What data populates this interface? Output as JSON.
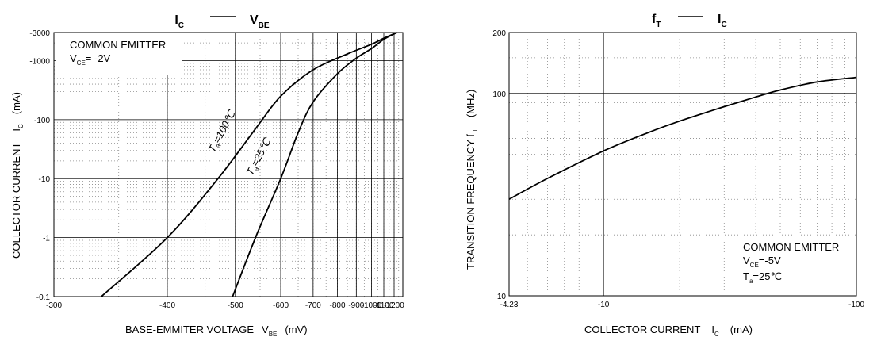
{
  "chart_data": [
    {
      "type": "line",
      "title": "IC — VBE",
      "title_parts": {
        "left_main": "I",
        "left_sub": "C",
        "right_main": "V",
        "right_sub": "BE"
      },
      "xlabel": "BASE-EMMITER VOLTAGE",
      "xlabel_symbol": "V",
      "xlabel_sub": "BE",
      "xlabel_unit": "(mV)",
      "ylabel": "COLLECTOR CURRENT",
      "ylabel_symbol": "I",
      "ylabel_sub": "C",
      "ylabel_unit": "(mA)",
      "x_scale": "reciprocal",
      "y_scale": "log",
      "xlim": [
        -300,
        -1300
      ],
      "ylim": [
        -0.1,
        -3000
      ],
      "x_ticks": [
        {
          "value": -300,
          "label": "-300"
        },
        {
          "value": -400,
          "label": "-400"
        },
        {
          "value": -500,
          "label": "-500"
        },
        {
          "value": -600,
          "label": "-600"
        },
        {
          "value": -700,
          "label": "-700"
        },
        {
          "value": -800,
          "label": "-800"
        },
        {
          "value": -900,
          "label": "-900"
        },
        {
          "value": -1000,
          "label": "-1000"
        },
        {
          "value": -1100,
          "label": "-1100"
        },
        {
          "value": -1200,
          "label": "-1200"
        }
      ],
      "y_ticks": [
        {
          "value": -0.1,
          "label": "-0.1"
        },
        {
          "value": -1,
          "label": "-1"
        },
        {
          "value": -10,
          "label": "-10"
        },
        {
          "value": -100,
          "label": "-100"
        },
        {
          "value": -1000,
          "label": "-1000"
        },
        {
          "value": -3000,
          "label": "-3000"
        }
      ],
      "grid": true,
      "annotation": {
        "line1": "COMMON EMITTER",
        "line2_main": "V",
        "line2_sub": "CE",
        "line2_rest": "= -2V",
        "position": "top-left"
      },
      "series": [
        {
          "name": "Ta=100℃",
          "label_main": "T",
          "label_sub": "a",
          "label_rest": "=100℃",
          "points": [
            [
              -335,
              -0.1
            ],
            [
              -400,
              -1
            ],
            [
              -470,
              -10
            ],
            [
              -540,
              -70
            ],
            [
              -600,
              -250
            ],
            [
              -700,
              -700
            ],
            [
              -850,
              -1300
            ],
            [
              -1000,
              -1900
            ],
            [
              -1100,
              -2400
            ],
            [
              -1230,
              -3000
            ]
          ]
        },
        {
          "name": "Ta=25℃",
          "label_main": "T",
          "label_sub": "a",
          "label_rest": "=25℃",
          "points": [
            [
              -495,
              -0.1
            ],
            [
              -540,
              -1
            ],
            [
              -600,
              -10
            ],
            [
              -650,
              -60
            ],
            [
              -700,
              -200
            ],
            [
              -800,
              -600
            ],
            [
              -900,
              -1100
            ],
            [
              -1000,
              -1600
            ],
            [
              -1100,
              -2300
            ],
            [
              -1230,
              -3000
            ]
          ]
        }
      ]
    },
    {
      "type": "line",
      "title": "fT — IC",
      "title_parts": {
        "left_main": "f",
        "left_sub": "T",
        "right_main": "I",
        "right_sub": "C"
      },
      "xlabel": "COLLECTOR CURRENT",
      "xlabel_symbol": "I",
      "xlabel_sub": "C",
      "xlabel_unit": "(mA)",
      "ylabel": "TRANSITION FREQUENCY f",
      "ylabel_sub": "T",
      "ylabel_unit": "(MHz)",
      "x_scale": "log",
      "y_scale": "log",
      "xlim": [
        -4.23,
        -100
      ],
      "ylim": [
        10,
        200
      ],
      "x_ticks": [
        {
          "value": -4.23,
          "label": "-4.23"
        },
        {
          "value": -10,
          "label": "-10"
        },
        {
          "value": -100,
          "label": "-100"
        }
      ],
      "y_ticks": [
        {
          "value": 10,
          "label": "10"
        },
        {
          "value": 100,
          "label": "100"
        },
        {
          "value": 200,
          "label": "200"
        }
      ],
      "grid": true,
      "annotation": {
        "line1": "COMMON EMITTER",
        "line2_main": "V",
        "line2_sub": "CE",
        "line2_rest": "=-5V",
        "line3_main": "T",
        "line3_sub": "a",
        "line3_rest": "=25℃",
        "position": "bottom-right"
      },
      "series": [
        {
          "points": [
            [
              -4.23,
              30
            ],
            [
              -6,
              38
            ],
            [
              -10,
              52
            ],
            [
              -15,
              64
            ],
            [
              -20,
              73
            ],
            [
              -30,
              86
            ],
            [
              -40,
              96
            ],
            [
              -50,
              104
            ],
            [
              -70,
              114
            ],
            [
              -100,
              120
            ]
          ]
        }
      ]
    }
  ]
}
